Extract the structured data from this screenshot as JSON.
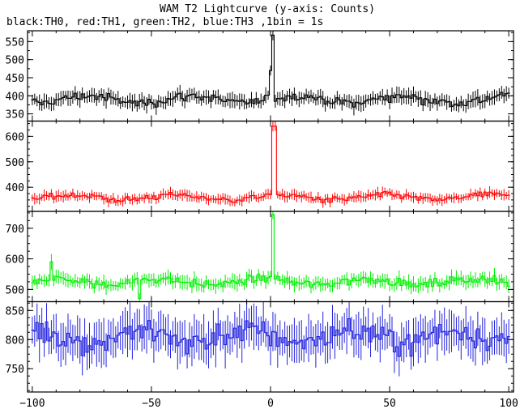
{
  "page": {
    "title": "WAM T2 Lightcurve (y-axis: Counts)",
    "subtitle": "black:TH0, red:TH1, green:TH2, blue:TH3 ,1bin = 1s"
  },
  "chart_data": {
    "type": "line",
    "title": "WAM T2 Lightcurve (y-axis: Counts)",
    "subtitle": "black:TH0, red:TH1, green:TH2, blue:TH3 ,1bin = 1s",
    "xlim": [
      -102,
      102
    ],
    "x_ticks": [
      -100,
      -50,
      0,
      50,
      100
    ],
    "x_tick_labels": [
      "−100",
      "−50",
      "0",
      "50",
      "100"
    ],
    "panels": [
      {
        "color": "#000000",
        "ylim": [
          330,
          580
        ],
        "y_ticks": [
          350,
          400,
          450,
          500,
          550
        ],
        "y_tick_labels": [
          "350",
          "400",
          "450",
          "500",
          "550"
        ],
        "baseline": 390,
        "noise": 16,
        "err": 18,
        "features": [
          {
            "x": 1,
            "value": 568
          },
          {
            "x": 0,
            "value": 470
          }
        ]
      },
      {
        "color": "#ff0000",
        "ylim": [
          305,
          660
        ],
        "y_ticks": [
          400,
          500,
          600
        ],
        "y_tick_labels": [
          "400",
          "500",
          "600"
        ],
        "baseline": 360,
        "noise": 15,
        "err": 18,
        "features": [
          {
            "x": 1,
            "value": 640
          },
          {
            "x": 2,
            "value": 640
          }
        ]
      },
      {
        "color": "#00ee00",
        "ylim": [
          460,
          755
        ],
        "y_ticks": [
          500,
          600,
          700
        ],
        "y_tick_labels": [
          "500",
          "600",
          "700"
        ],
        "baseline": 525,
        "noise": 17,
        "err": 20,
        "features": [
          {
            "x": 1,
            "value": 745
          },
          {
            "x": -55,
            "value": 470
          },
          {
            "x": -92,
            "value": 590
          }
        ]
      },
      {
        "color": "#2222dd",
        "ylim": [
          710,
          865
        ],
        "y_ticks": [
          750,
          800,
          850
        ],
        "y_tick_labels": [
          "750",
          "800",
          "850"
        ],
        "baseline": 805,
        "noise": 28,
        "err": 32,
        "features": []
      }
    ]
  }
}
